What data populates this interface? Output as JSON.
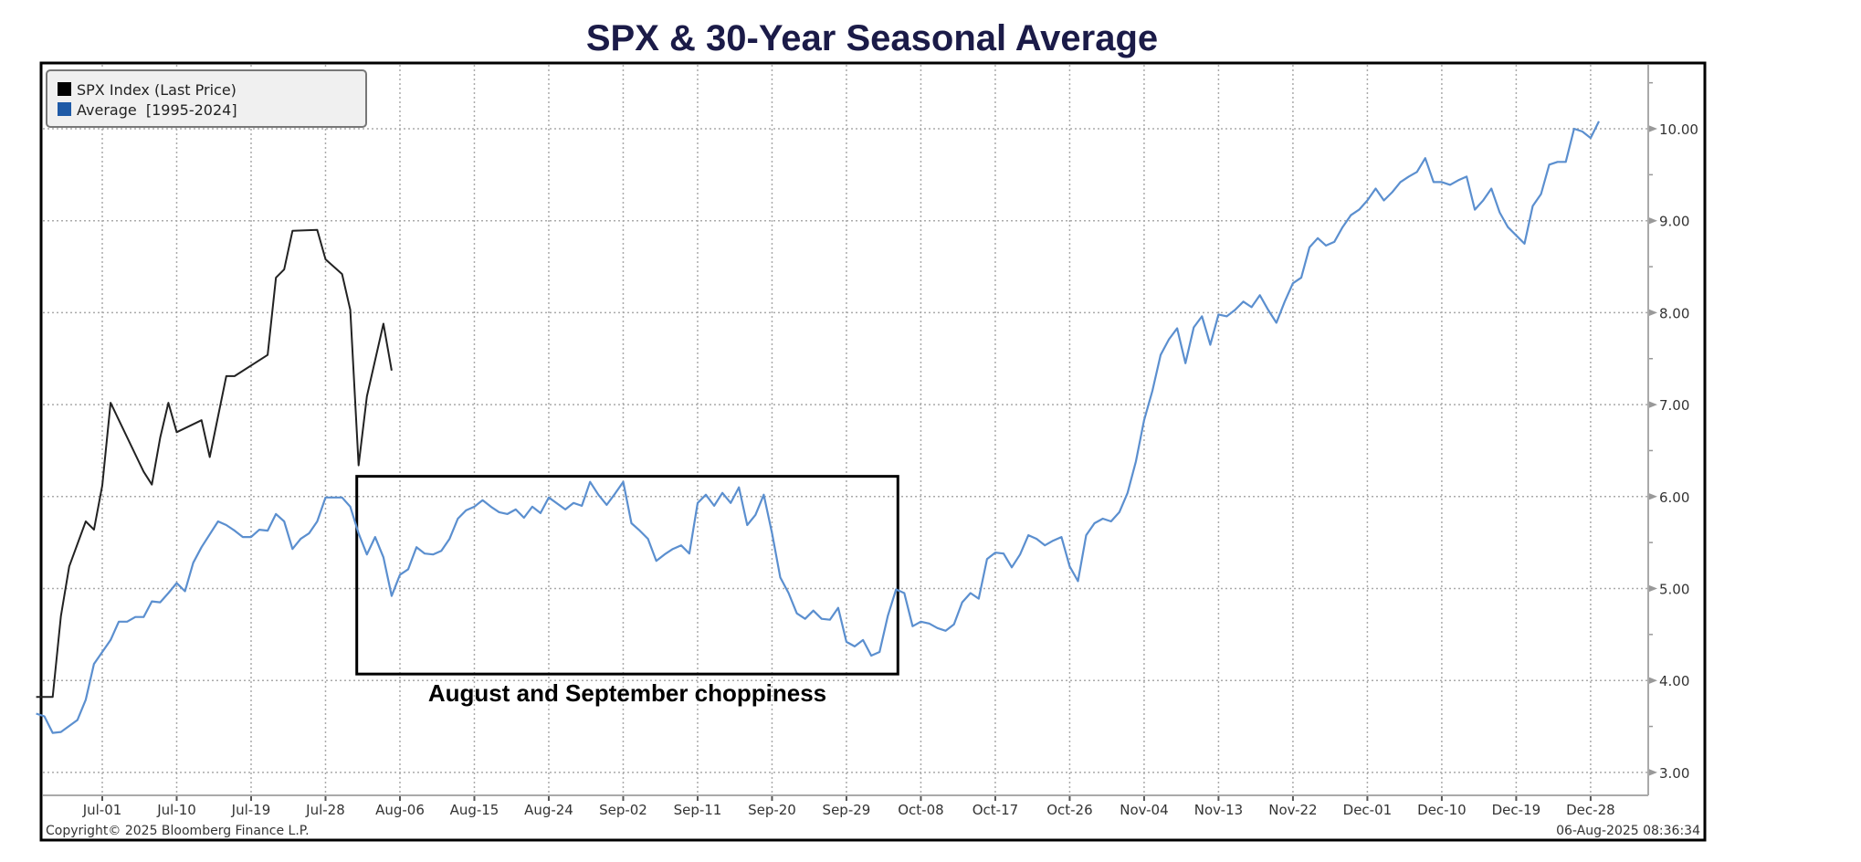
{
  "chart_data": {
    "type": "line",
    "title": "SPX & 30-Year Seasonal Average",
    "xlabel": "",
    "ylabel": "",
    "ylim": [
      2.7,
      10.7
    ],
    "yticks": [
      "3.00",
      "4.00",
      "5.00",
      "6.00",
      "7.00",
      "8.00",
      "9.00",
      "10.00"
    ],
    "xticks": [
      "Jul-01",
      "Jul-10",
      "Jul-19",
      "Jul-28",
      "Aug-06",
      "Aug-15",
      "Aug-24",
      "Sep-02",
      "Sep-11",
      "Sep-20",
      "Sep-29",
      "Oct-08",
      "Oct-17",
      "Oct-26",
      "Nov-04",
      "Nov-13",
      "Nov-22",
      "Dec-01",
      "Dec-10",
      "Dec-19",
      "Dec-28"
    ],
    "grid": true,
    "legend_placement": "top-left",
    "y_axis_side": "right",
    "series": [
      {
        "name": "SPX Index (Last Price)",
        "color": "#000000",
        "x": [
          "Jun-23",
          "Jun-25",
          "Jun-26",
          "Jun-27",
          "Jun-29",
          "Jun-30",
          "Jul-01",
          "Jul-02",
          "Jul-06",
          "Jul-07",
          "Jul-08",
          "Jul-09",
          "Jul-10",
          "Jul-13",
          "Jul-14",
          "Jul-16",
          "Jul-17",
          "Jul-21",
          "Jul-22",
          "Jul-23",
          "Jul-24",
          "Jul-27",
          "Jul-28",
          "Jul-30",
          "Jul-31",
          "Aug-01",
          "Aug-02",
          "Aug-04",
          "Aug-05"
        ],
        "y": [
          3.82,
          3.82,
          4.7,
          5.24,
          5.73,
          5.64,
          6.12,
          7.02,
          6.27,
          6.13,
          6.64,
          7.02,
          6.7,
          6.83,
          6.43,
          7.31,
          7.31,
          7.54,
          8.38,
          8.47,
          8.89,
          8.9,
          8.58,
          8.42,
          8.03,
          6.34,
          7.09,
          7.88,
          7.37
        ]
      },
      {
        "name": "Average  [1995-2024]",
        "color": "#5b8fcf",
        "legend_color": "#1f5aa6",
        "x": [
          "Jun-23",
          "Jun-24",
          "Jun-25",
          "Jun-26",
          "Jun-28",
          "Jun-29",
          "Jun-30",
          "Jul-02",
          "Jul-03",
          "Jul-04",
          "Jul-05",
          "Jul-06",
          "Jul-07",
          "Jul-08",
          "Jul-09",
          "Jul-10",
          "Jul-11",
          "Jul-12",
          "Jul-13",
          "Jul-15",
          "Jul-16",
          "Jul-17",
          "Jul-18",
          "Jul-19",
          "Jul-20",
          "Jul-21",
          "Jul-22",
          "Jul-23",
          "Jul-24",
          "Jul-25",
          "Jul-26",
          "Jul-27",
          "Jul-28",
          "Jul-30",
          "Jul-31",
          "Aug-01",
          "Aug-02",
          "Aug-03",
          "Aug-04",
          "Aug-05",
          "Aug-06",
          "Aug-07",
          "Aug-08",
          "Aug-09",
          "Aug-10",
          "Aug-11",
          "Aug-12",
          "Aug-13",
          "Aug-14",
          "Aug-15",
          "Aug-16",
          "Aug-17",
          "Aug-18",
          "Aug-19",
          "Aug-20",
          "Aug-21",
          "Aug-22",
          "Aug-23",
          "Aug-24",
          "Aug-26",
          "Aug-27",
          "Aug-28",
          "Aug-29",
          "Aug-30",
          "Aug-31",
          "Sep-01",
          "Sep-02",
          "Sep-03",
          "Sep-04",
          "Sep-05",
          "Sep-06",
          "Sep-07",
          "Sep-08",
          "Sep-09",
          "Sep-10",
          "Sep-11",
          "Sep-12",
          "Sep-13",
          "Sep-14",
          "Sep-15",
          "Sep-16",
          "Sep-17",
          "Sep-18",
          "Sep-19",
          "Sep-20",
          "Sep-21",
          "Sep-22",
          "Sep-23",
          "Sep-24",
          "Sep-25",
          "Sep-26",
          "Sep-27",
          "Sep-28",
          "Sep-29",
          "Sep-30",
          "Oct-01",
          "Oct-02",
          "Oct-03",
          "Oct-04",
          "Oct-05",
          "Oct-06",
          "Oct-07",
          "Oct-08",
          "Oct-09",
          "Oct-10",
          "Oct-11",
          "Oct-12",
          "Oct-13",
          "Oct-14",
          "Oct-15",
          "Oct-16",
          "Oct-17",
          "Oct-18",
          "Oct-19",
          "Oct-20",
          "Oct-21",
          "Oct-22",
          "Oct-23",
          "Oct-24",
          "Oct-25",
          "Oct-26",
          "Oct-27",
          "Oct-28",
          "Oct-29",
          "Oct-30",
          "Oct-31",
          "Nov-01",
          "Nov-02",
          "Nov-03",
          "Nov-04",
          "Nov-05",
          "Nov-06",
          "Nov-07",
          "Nov-08",
          "Nov-09",
          "Nov-10",
          "Nov-11",
          "Nov-12",
          "Nov-13",
          "Nov-14",
          "Nov-15",
          "Nov-16",
          "Nov-17",
          "Nov-18",
          "Nov-19",
          "Nov-20",
          "Nov-21",
          "Nov-22",
          "Nov-23",
          "Nov-24",
          "Nov-25",
          "Nov-26",
          "Nov-27",
          "Nov-28",
          "Nov-29",
          "Nov-30",
          "Dec-01",
          "Dec-02",
          "Dec-03",
          "Dec-04",
          "Dec-05",
          "Dec-06",
          "Dec-07",
          "Dec-08",
          "Dec-09",
          "Dec-10",
          "Dec-11",
          "Dec-12",
          "Dec-13",
          "Dec-14",
          "Dec-15",
          "Dec-16",
          "Dec-17",
          "Dec-18",
          "Dec-19",
          "Dec-20",
          "Dec-21",
          "Dec-22",
          "Dec-23",
          "Dec-24",
          "Dec-25",
          "Dec-26",
          "Dec-27",
          "Dec-28",
          "Dec-29"
        ],
        "y": [
          3.64,
          3.61,
          3.43,
          3.44,
          3.57,
          3.79,
          4.18,
          4.44,
          4.64,
          4.64,
          4.69,
          4.69,
          4.86,
          4.85,
          4.95,
          5.06,
          4.97,
          5.28,
          5.45,
          5.73,
          5.69,
          5.63,
          5.56,
          5.56,
          5.64,
          5.63,
          5.81,
          5.73,
          5.43,
          5.54,
          5.6,
          5.73,
          5.99,
          5.99,
          5.89,
          5.6,
          5.37,
          5.56,
          5.34,
          4.92,
          5.15,
          5.21,
          5.45,
          5.38,
          5.37,
          5.41,
          5.54,
          5.76,
          5.85,
          5.89,
          5.96,
          5.89,
          5.83,
          5.81,
          5.86,
          5.77,
          5.89,
          5.82,
          5.99,
          5.86,
          5.93,
          5.9,
          6.16,
          6.02,
          5.91,
          6.03,
          6.16,
          5.71,
          5.63,
          5.54,
          5.3,
          5.37,
          5.43,
          5.47,
          5.38,
          5.93,
          6.02,
          5.9,
          6.04,
          5.93,
          6.1,
          5.69,
          5.8,
          6.02,
          5.6,
          5.12,
          4.95,
          4.73,
          4.67,
          4.76,
          4.67,
          4.66,
          4.79,
          4.42,
          4.37,
          4.44,
          4.27,
          4.31,
          4.7,
          4.99,
          4.95,
          4.59,
          4.64,
          4.62,
          4.57,
          4.54,
          4.61,
          4.85,
          4.95,
          4.89,
          5.32,
          5.39,
          5.38,
          5.23,
          5.37,
          5.58,
          5.54,
          5.47,
          5.52,
          5.56,
          5.24,
          5.08,
          5.58,
          5.71,
          5.76,
          5.73,
          5.83,
          6.04,
          6.38,
          6.83,
          7.15,
          7.54,
          7.71,
          7.83,
          7.45,
          7.84,
          7.96,
          7.65,
          7.98,
          7.96,
          8.03,
          8.12,
          8.06,
          8.19,
          8.03,
          7.89,
          8.12,
          8.32,
          8.38,
          8.71,
          8.81,
          8.73,
          8.77,
          8.93,
          9.06,
          9.12,
          9.22,
          9.35,
          9.22,
          9.31,
          9.42,
          9.48,
          9.53,
          9.68,
          9.42,
          9.42,
          9.39,
          9.44,
          9.48,
          9.12,
          9.22,
          9.35,
          9.09,
          8.93,
          8.84,
          8.75,
          9.16,
          9.29,
          9.61,
          9.64,
          9.64,
          10.0,
          9.97,
          9.9,
          10.08
        ]
      }
    ],
    "annotation": {
      "text": "August and September choppiness",
      "box_x_range": [
        "Aug-01",
        "Oct-05"
      ],
      "box_y_range": [
        4.07,
        6.22
      ]
    },
    "footer_left": "Copyright© 2025 Bloomberg Finance L.P.",
    "footer_right": "06-Aug-2025 08:36:34"
  }
}
